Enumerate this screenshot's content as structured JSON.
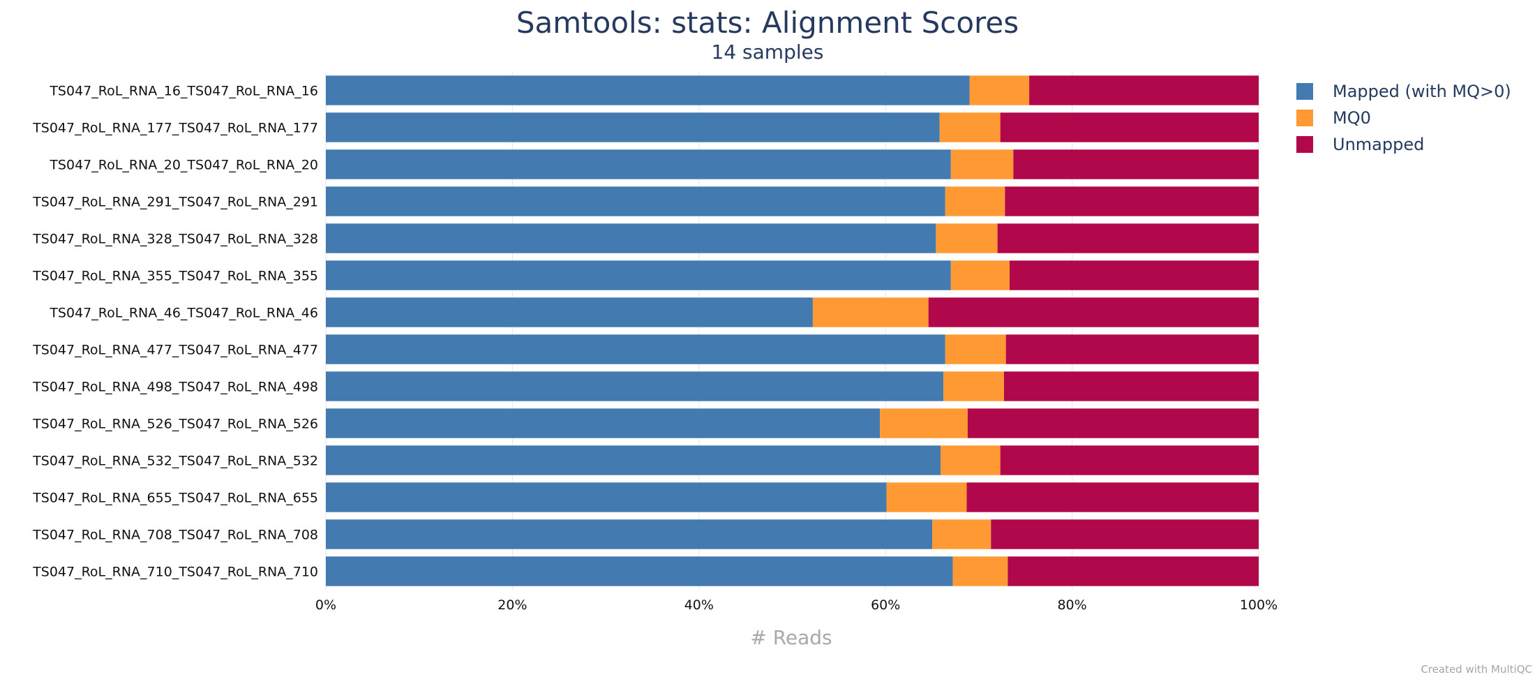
{
  "chart_data": {
    "type": "bar",
    "orientation": "horizontal",
    "stacked": true,
    "title": "Samtools: stats: Alignment Scores",
    "subtitle": "14 samples",
    "xlabel": "# Reads",
    "xlim": [
      0,
      100
    ],
    "x_ticks": [
      "0%",
      "20%",
      "40%",
      "60%",
      "80%",
      "100%"
    ],
    "grid": true,
    "legend_position": "top-right",
    "categories": [
      "TS047_RoL_RNA_16_TS047_RoL_RNA_16",
      "TS047_RoL_RNA_177_TS047_RoL_RNA_177",
      "TS047_RoL_RNA_20_TS047_RoL_RNA_20",
      "TS047_RoL_RNA_291_TS047_RoL_RNA_291",
      "TS047_RoL_RNA_328_TS047_RoL_RNA_328",
      "TS047_RoL_RNA_355_TS047_RoL_RNA_355",
      "TS047_RoL_RNA_46_TS047_RoL_RNA_46",
      "TS047_RoL_RNA_477_TS047_RoL_RNA_477",
      "TS047_RoL_RNA_498_TS047_RoL_RNA_498",
      "TS047_RoL_RNA_526_TS047_RoL_RNA_526",
      "TS047_RoL_RNA_532_TS047_RoL_RNA_532",
      "TS047_RoL_RNA_655_TS047_RoL_RNA_655",
      "TS047_RoL_RNA_708_TS047_RoL_RNA_708",
      "TS047_RoL_RNA_710_TS047_RoL_RNA_710"
    ],
    "series": [
      {
        "name": "Mapped (with MQ>0)",
        "color": "#437bb1",
        "values": [
          69.0,
          65.8,
          67.0,
          66.4,
          65.4,
          67.0,
          52.2,
          66.4,
          66.2,
          59.4,
          65.9,
          60.1,
          65.0,
          67.2
        ]
      },
      {
        "name": "MQ0",
        "color": "#ff9933",
        "values": [
          6.4,
          6.5,
          6.7,
          6.4,
          6.6,
          6.3,
          12.4,
          6.5,
          6.5,
          9.4,
          6.4,
          8.6,
          6.3,
          5.9
        ]
      },
      {
        "name": "Unmapped",
        "color": "#b1084c",
        "values": [
          24.6,
          27.7,
          26.3,
          27.2,
          28.0,
          26.7,
          35.4,
          27.1,
          27.3,
          31.2,
          27.7,
          31.3,
          28.7,
          26.9
        ]
      }
    ]
  },
  "footer": {
    "credit": "Created with MultiQC"
  }
}
